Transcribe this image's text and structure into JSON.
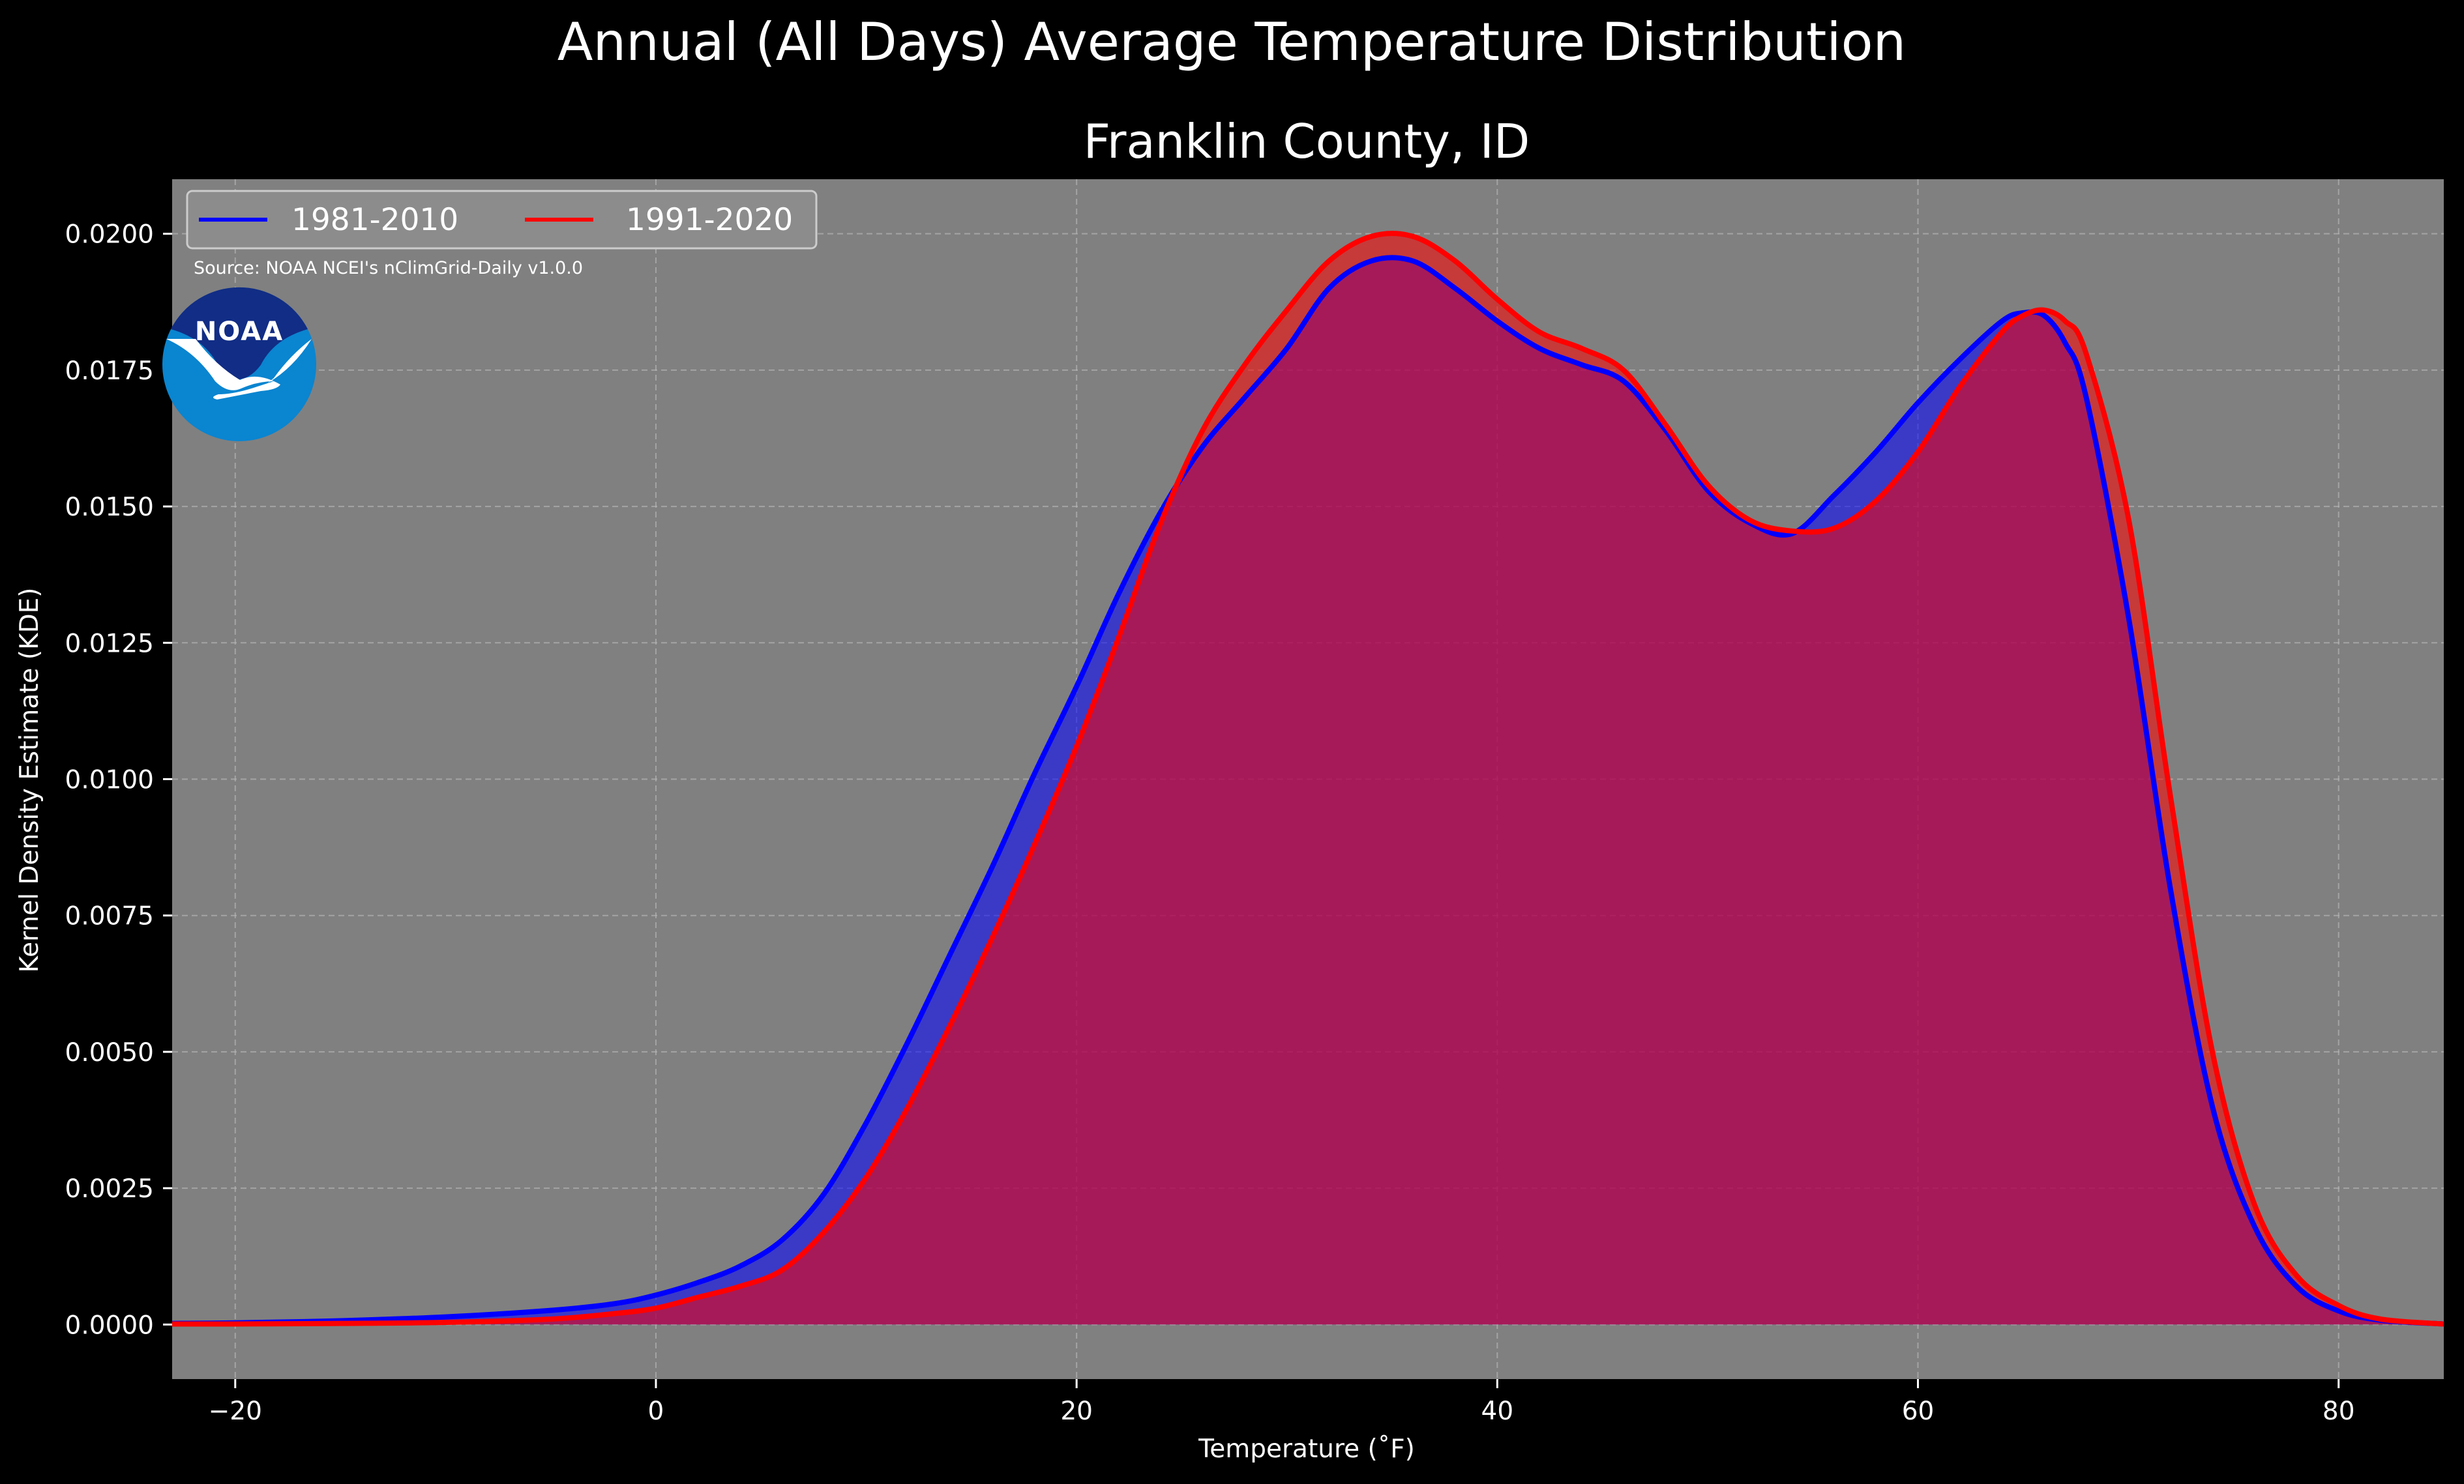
{
  "chart_data": {
    "type": "area",
    "title": "Annual (All Days) Average Temperature Distribution",
    "subtitle": "Franklin County, ID",
    "xlabel": "Temperature (˚F)",
    "ylabel": "Kernel Density Estimate (KDE)",
    "xlim": [
      -23,
      85
    ],
    "ylim": [
      -0.001,
      0.021
    ],
    "x_ticks": [
      -20,
      0,
      20,
      40,
      60,
      80
    ],
    "x_tick_labels": [
      "−20",
      "0",
      "20",
      "40",
      "60",
      "80"
    ],
    "y_ticks": [
      0,
      0.0025,
      0.005,
      0.0075,
      0.01,
      0.0125,
      0.015,
      0.0175,
      0.02
    ],
    "y_tick_labels": [
      "0.0000",
      "0.0025",
      "0.0050",
      "0.0075",
      "0.0100",
      "0.0125",
      "0.0150",
      "0.0175",
      "0.0200"
    ],
    "grid": true,
    "legend_position": "top-left",
    "source_note": "Source: NOAA NCEI's nClimGrid-Daily v1.0.0",
    "logo_text": "NOAA",
    "colors": {
      "figure_background": "#000000",
      "plot_background": "#808080",
      "series_1981_2010": "#0000ff",
      "series_1991_2020": "#ff0000",
      "overlap_fill": "#9e1f5e",
      "grid": "#b4b4b4",
      "logo_outer": "#0a85d0",
      "logo_inner": "#112d85"
    },
    "x": [
      -23,
      -20,
      -15,
      -10,
      -5,
      -2,
      0,
      2,
      4,
      6,
      8,
      10,
      12,
      14,
      16,
      18,
      20,
      22,
      24,
      26,
      28,
      30,
      32,
      34,
      36,
      38,
      40,
      42,
      44,
      46,
      48,
      50,
      52,
      54,
      56,
      58,
      60,
      62,
      64,
      65,
      66,
      67,
      68,
      70,
      72,
      74,
      76,
      78,
      80,
      82,
      85
    ],
    "series": [
      {
        "name": "1981-2010",
        "color": "#0000ff",
        "values": [
          2e-05,
          3e-05,
          7e-05,
          0.00014,
          0.00026,
          0.00038,
          0.00054,
          0.00077,
          0.00107,
          0.00155,
          0.0024,
          0.0037,
          0.0052,
          0.0068,
          0.0084,
          0.0101,
          0.0117,
          0.0134,
          0.0149,
          0.0161,
          0.017,
          0.0179,
          0.019,
          0.0195,
          0.0195,
          0.019,
          0.0184,
          0.0179,
          0.0176,
          0.0173,
          0.0164,
          0.0153,
          0.0147,
          0.0145,
          0.0152,
          0.016,
          0.0169,
          0.0177,
          0.0184,
          0.01855,
          0.0185,
          0.018,
          0.017,
          0.013,
          0.008,
          0.004,
          0.0018,
          0.0007,
          0.00025,
          8e-05,
          1e-05
        ]
      },
      {
        "name": "1991-2020",
        "color": "#ff0000",
        "values": [
          1e-05,
          1e-05,
          2e-05,
          4e-05,
          0.0001,
          0.0002,
          0.0003,
          0.0005,
          0.0007,
          0.001,
          0.0017,
          0.0027,
          0.004,
          0.0055,
          0.0071,
          0.0088,
          0.0106,
          0.0126,
          0.0147,
          0.0164,
          0.0176,
          0.0186,
          0.0195,
          0.01995,
          0.01995,
          0.0195,
          0.0188,
          0.0182,
          0.0179,
          0.0175,
          0.0165,
          0.0154,
          0.01475,
          0.01455,
          0.0146,
          0.0151,
          0.016,
          0.0172,
          0.0182,
          0.0185,
          0.0186,
          0.0184,
          0.0178,
          0.0148,
          0.0097,
          0.005,
          0.0022,
          0.0009,
          0.00035,
          0.0001,
          1e-05
        ]
      }
    ]
  }
}
